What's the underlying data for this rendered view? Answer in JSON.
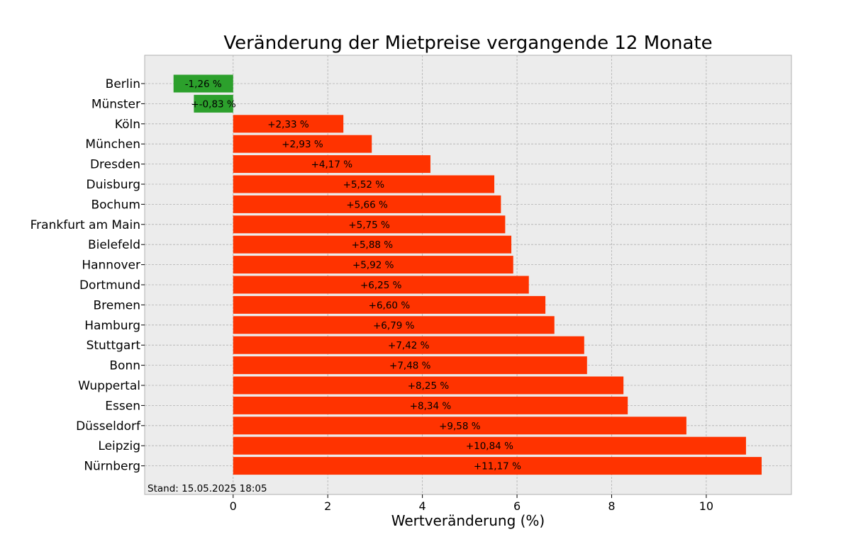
{
  "chart_data": {
    "type": "bar",
    "orientation": "horizontal",
    "title": "Veränderung der Mietpreise vergangende 12 Monate",
    "xlabel": "Wertveränderung (%)",
    "ylabel": "",
    "xlim": [
      -1.87,
      11.8
    ],
    "xticks": [
      0,
      2,
      4,
      6,
      8,
      10
    ],
    "grid": true,
    "note": "Stand: 15.05.2025 18:05",
    "colors": {
      "positive": "#ff3300",
      "negative": "#2ca02c",
      "background": "#ececec",
      "grid": "#b0b0b0"
    },
    "categories": [
      "Berlin",
      "Münster",
      "Köln",
      "München",
      "Dresden",
      "Duisburg",
      "Bochum",
      "Frankfurt am Main",
      "Bielefeld",
      "Hannover",
      "Dortmund",
      "Bremen",
      "Hamburg",
      "Stuttgart",
      "Bonn",
      "Wuppertal",
      "Essen",
      "Düsseldorf",
      "Leipzig",
      "Nürnberg"
    ],
    "values": [
      -1.26,
      -0.83,
      2.33,
      2.93,
      4.17,
      5.52,
      5.66,
      5.75,
      5.88,
      5.92,
      6.25,
      6.6,
      6.79,
      7.42,
      7.48,
      8.25,
      8.34,
      9.58,
      10.84,
      11.17
    ],
    "value_labels": [
      "-1,26 %",
      "+-0,83 %",
      "+2,33 %",
      "+2,93 %",
      "+4,17 %",
      "+5,52 %",
      "+5,66 %",
      "+5,75 %",
      "+5,88 %",
      "+5,92 %",
      "+6,25 %",
      "+6,60 %",
      "+6,79 %",
      "+7,42 %",
      "+7,48 %",
      "+8,25 %",
      "+8,34 %",
      "+9,58 %",
      "+10,84 %",
      "+11,17 %"
    ]
  }
}
